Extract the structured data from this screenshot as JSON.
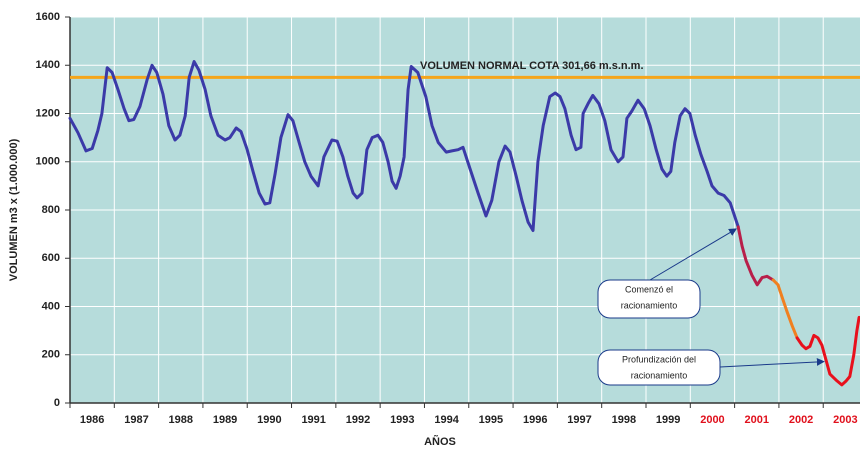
{
  "chart_data": {
    "type": "line",
    "xlabel": "AÑOS",
    "ylabel": "VOLUMEN m3 x (1.000.000)",
    "xlim": [
      1986,
      2003.83
    ],
    "ylim": [
      0,
      1600
    ],
    "yticks": [
      0,
      200,
      400,
      600,
      800,
      1000,
      1200,
      1400,
      1600
    ],
    "xticks": [
      1986,
      1987,
      1988,
      1989,
      1990,
      1991,
      1992,
      1993,
      1994,
      1995,
      1996,
      1997,
      1998,
      1999,
      2000,
      2001,
      2002,
      2003
    ],
    "xtick_label_colors": [
      "#222222",
      "#222222",
      "#222222",
      "#222222",
      "#222222",
      "#222222",
      "#222222",
      "#222222",
      "#222222",
      "#222222",
      "#222222",
      "#222222",
      "#222222",
      "#222222",
      "#e0101c",
      "#e0101c",
      "#e0101c",
      "#e0101c"
    ],
    "grid": true,
    "background": "#b6dcdb",
    "series": [
      {
        "color": "#3b3aa8",
        "x": [
          1986.0,
          1986.18,
          1986.36,
          1986.5,
          1986.63,
          1986.72,
          1986.84,
          1986.95,
          1987.08,
          1987.22,
          1987.33,
          1987.44,
          1987.58,
          1987.74,
          1987.85,
          1987.96,
          1988.1,
          1988.23,
          1988.37,
          1988.48,
          1988.6,
          1988.69,
          1988.8,
          1988.91,
          1989.05,
          1989.18,
          1989.34,
          1989.5,
          1989.61,
          1989.75,
          1989.86,
          1990.0,
          1990.13,
          1990.27,
          1990.4,
          1990.51,
          1990.63,
          1990.76,
          1990.92,
          1991.03,
          1991.17,
          1991.3,
          1991.44,
          1991.6,
          1991.73,
          1991.91,
          1992.03,
          1992.16,
          1992.27,
          1992.39,
          1992.48,
          1992.59,
          1992.7,
          1992.82,
          1992.95,
          1993.06,
          1993.18,
          1993.27,
          1993.36,
          1993.45,
          1993.54,
          1993.63,
          1993.7,
          1993.85,
          1994.03,
          1994.17,
          1994.31,
          1994.49,
          1994.62,
          1994.76,
          1994.87,
          1995.03,
          1995.21,
          1995.39,
          1995.52,
          1995.68,
          1995.82,
          1995.93,
          1996.07,
          1996.2,
          1996.34,
          1996.45,
          1996.56,
          1996.68,
          1996.83,
          1996.95,
          1997.06,
          1997.17,
          1997.31,
          1997.42,
          1997.53,
          1997.58,
          1997.69,
          1997.8,
          1997.94,
          1998.07,
          1998.21,
          1998.37,
          1998.48,
          1998.57,
          1998.68,
          1998.82,
          1998.96,
          1999.09,
          1999.23,
          1999.36,
          1999.47,
          1999.56,
          1999.65,
          1999.77,
          1999.88,
          1999.99,
          2000.11,
          2000.24,
          2000.38,
          2000.49,
          2000.63,
          2000.76,
          2000.9,
          2000.99,
          2001.08
        ],
        "values": [
          1180,
          1120,
          1045,
          1055,
          1130,
          1200,
          1390,
          1370,
          1300,
          1220,
          1170,
          1175,
          1230,
          1340,
          1400,
          1370,
          1280,
          1150,
          1090,
          1110,
          1190,
          1350,
          1415,
          1380,
          1300,
          1190,
          1110,
          1090,
          1100,
          1140,
          1125,
          1050,
          960,
          870,
          825,
          830,
          950,
          1100,
          1195,
          1170,
          1080,
          1000,
          940,
          900,
          1020,
          1090,
          1085,
          1020,
          940,
          870,
          850,
          870,
          1050,
          1100,
          1110,
          1080,
          1000,
          920,
          890,
          940,
          1020,
          1300,
          1395,
          1370,
          1270,
          1150,
          1080,
          1040,
          1045,
          1050,
          1060,
          970,
          870,
          775,
          840,
          1000,
          1065,
          1040,
          940,
          840,
          750,
          715,
          1000,
          1150,
          1270,
          1285,
          1270,
          1220,
          1110,
          1050,
          1060,
          1200,
          1240,
          1275,
          1240,
          1170,
          1050,
          1000,
          1020,
          1180,
          1210,
          1255,
          1220,
          1150,
          1050,
          970,
          940,
          960,
          1080,
          1190,
          1220,
          1200,
          1110,
          1030,
          960,
          900,
          870,
          860,
          830,
          780,
          730
        ]
      },
      {
        "color": "#b81f4a",
        "x": [
          2001.08,
          2001.17,
          2001.26,
          2001.39,
          2001.51,
          2001.62,
          2001.73,
          2001.87
        ],
        "values": [
          730,
          650,
          590,
          530,
          490,
          520,
          525,
          510
        ]
      },
      {
        "color": "#f08020",
        "x": [
          2001.87,
          2001.98,
          2002.07,
          2002.18,
          2002.3,
          2002.41
        ],
        "values": [
          510,
          490,
          440,
          380,
          320,
          270
        ]
      },
      {
        "color": "#e8101c",
        "x": [
          2002.41,
          2002.52,
          2002.61,
          2002.7,
          2002.79,
          2002.88,
          2002.97,
          2003.06,
          2003.15,
          2003.29,
          2003.42,
          2003.51,
          2003.6,
          2003.69,
          2003.76,
          2003.81
        ],
        "values": [
          270,
          240,
          225,
          235,
          280,
          270,
          240,
          180,
          120,
          95,
          75,
          90,
          110,
          200,
          300,
          355
        ]
      }
    ],
    "reference_line": {
      "text": "VOLUMEN NORMAL COTA 301,66 m.s.n.m.",
      "value": 1350,
      "color": "#f5a51a"
    },
    "callouts": [
      {
        "lines": [
          "Comenzó el",
          "racionamiento"
        ]
      },
      {
        "lines": [
          "Profundización del",
          "racionamiento"
        ]
      }
    ]
  }
}
